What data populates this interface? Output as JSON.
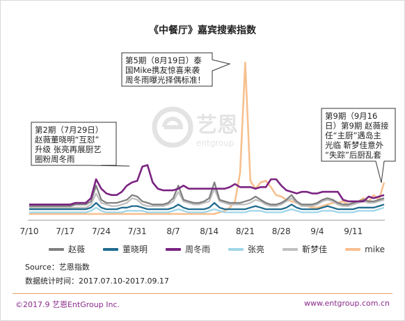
{
  "title": "《中餐厅》嘉宾搜索指数",
  "watermark": {
    "name": "艺恩",
    "sub": "entgroup",
    "icon": "entgroup-logo-icon"
  },
  "source": "Source：艺恩指数",
  "period": "数据统计时间：2017.07.10-2017.09.17",
  "copyright": "©2017.9 艺恩EntGroup Inc.",
  "website": "www.entgroup.com.cn",
  "colors": {
    "accent_line": "#e3a36b",
    "footer_text": "#8a2a8a"
  },
  "callouts": [
    {
      "id": "ep2",
      "lines": [
        "第2期（7月29日）",
        "赵薇董晓明“互怼”",
        "升级 张亮再展厨艺",
        "圈粉周冬雨"
      ]
    },
    {
      "id": "ep5",
      "lines": [
        "第5期（8月19日）泰",
        "国Mike携友惊喜来袭",
        "周冬雨曝光择偶标准！"
      ]
    },
    {
      "id": "ep9",
      "lines": [
        "第9期（9月16",
        "日）第9期 赵薇接",
        "任“主厨”遇岛主",
        "光临 靳梦佳意外",
        "“失踪”后厨乱套"
      ]
    }
  ],
  "chart_data": {
    "type": "line",
    "title": "《中餐厅》嘉宾搜索指数",
    "xlabel": "",
    "ylabel": "",
    "x_start": "2017-07-10",
    "x_end": "2017-09-17",
    "x_ticks": [
      "7/10",
      "7/17",
      "7/24",
      "7/31",
      "8/7",
      "8/14",
      "8/21",
      "8/28",
      "9/4",
      "9/11"
    ],
    "y_axis_shown": false,
    "ylim": [
      0,
      100
    ],
    "grid": false,
    "legend_position": "bottom",
    "series": [
      {
        "name": "赵薇",
        "color": "#808080",
        "values": [
          9,
          9,
          9,
          9,
          9,
          9,
          9,
          9,
          9,
          10,
          10,
          10,
          12,
          22,
          13,
          11,
          11,
          11,
          12,
          13,
          16,
          15,
          12,
          11,
          10,
          10,
          10,
          11,
          14,
          22,
          13,
          12,
          11,
          11,
          12,
          14,
          24,
          13,
          12,
          11,
          11,
          11,
          12,
          13,
          15,
          13,
          11,
          10,
          10,
          11,
          13,
          16,
          12,
          10,
          10,
          10,
          11,
          13,
          14,
          13,
          11,
          10,
          10,
          11,
          12,
          13,
          12,
          12,
          13,
          14
        ]
      },
      {
        "name": "董晓明",
        "color": "#1f6b8f",
        "values": [
          7,
          7,
          7,
          7,
          7,
          7,
          7,
          7,
          7,
          7,
          7,
          7,
          8,
          11,
          8,
          7,
          7,
          7,
          8,
          8,
          9,
          9,
          8,
          7,
          7,
          7,
          7,
          7,
          8,
          10,
          8,
          7,
          7,
          7,
          7,
          8,
          11,
          8,
          7,
          7,
          7,
          7,
          7,
          8,
          9,
          8,
          7,
          7,
          7,
          7,
          8,
          10,
          8,
          7,
          7,
          7,
          7,
          8,
          9,
          8,
          7,
          7,
          7,
          7,
          8,
          8,
          8,
          8,
          9,
          10
        ]
      },
      {
        "name": "周冬雨",
        "color": "#7a2381",
        "values": [
          10,
          10,
          10,
          10,
          10,
          10,
          10,
          10,
          10,
          11,
          11,
          11,
          14,
          26,
          20,
          17,
          16,
          16,
          18,
          22,
          24,
          25,
          34,
          35,
          24,
          20,
          19,
          19,
          19,
          20,
          22,
          20,
          20,
          20,
          20,
          20,
          20,
          20,
          20,
          21,
          23,
          21,
          21,
          21,
          20,
          21,
          21,
          26,
          26,
          22,
          19,
          18,
          17,
          18,
          18,
          17,
          17,
          18,
          18,
          18,
          18,
          13,
          12,
          12,
          12,
          12,
          15,
          14,
          15,
          16
        ]
      },
      {
        "name": "张亮",
        "color": "#9fd6e8",
        "values": [
          5,
          5,
          5,
          5,
          5,
          5,
          5,
          5,
          5,
          5,
          5,
          5,
          6,
          8,
          6,
          5,
          5,
          5,
          5,
          6,
          6,
          6,
          6,
          5,
          5,
          5,
          5,
          5,
          6,
          7,
          6,
          5,
          5,
          5,
          5,
          6,
          7,
          6,
          5,
          5,
          5,
          5,
          5,
          6,
          6,
          6,
          5,
          5,
          5,
          5,
          6,
          7,
          6,
          5,
          5,
          5,
          5,
          6,
          6,
          6,
          5,
          5,
          5,
          5,
          6,
          6,
          6,
          6,
          7,
          8
        ]
      },
      {
        "name": "靳梦佳",
        "color": "#bfbfbf",
        "values": [
          8,
          8,
          8,
          8,
          8,
          8,
          8,
          8,
          8,
          8,
          8,
          8,
          10,
          17,
          11,
          10,
          9,
          9,
          10,
          11,
          14,
          13,
          10,
          9,
          9,
          9,
          9,
          10,
          12,
          18,
          12,
          11,
          10,
          10,
          11,
          12,
          20,
          12,
          11,
          10,
          10,
          10,
          10,
          11,
          13,
          12,
          10,
          9,
          9,
          10,
          12,
          14,
          11,
          9,
          9,
          9,
          10,
          12,
          13,
          12,
          10,
          9,
          9,
          10,
          11,
          12,
          11,
          11,
          12,
          13
        ]
      },
      {
        "name": "mike",
        "color": "#f7c08f",
        "values": [
          4,
          4,
          4,
          4,
          4,
          4,
          4,
          4,
          4,
          4,
          4,
          4,
          4,
          4,
          4,
          4,
          4,
          4,
          4,
          4,
          4,
          4,
          4,
          4,
          4,
          4,
          4,
          4,
          4,
          4,
          4,
          4,
          4,
          4,
          4,
          4,
          4,
          5,
          6,
          8,
          12,
          30,
          100,
          25,
          20,
          24,
          25,
          21,
          16,
          15,
          13,
          12,
          11,
          10,
          9,
          8,
          8,
          9,
          10,
          11,
          11,
          12,
          10,
          11,
          12,
          14,
          12,
          16,
          13,
          24
        ]
      }
    ]
  }
}
